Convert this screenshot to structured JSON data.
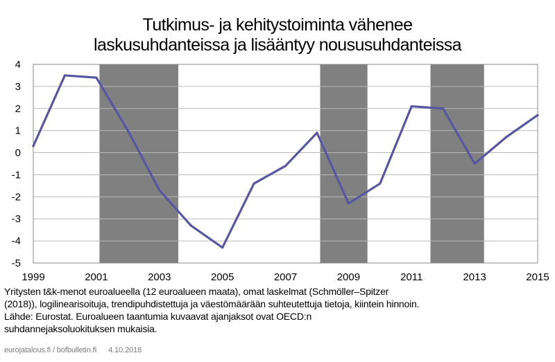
{
  "title": {
    "line1": "Tutkimus- ja kehitystoiminta vähenee",
    "line2": "laskusuhdanteissa ja lisääntyy noususuhdanteissa"
  },
  "chart_data": {
    "type": "line",
    "x": [
      1999,
      2000,
      2001,
      2002,
      2003,
      2004,
      2005,
      2006,
      2007,
      2008,
      2009,
      2010,
      2011,
      2012,
      2013,
      2014,
      2015
    ],
    "series": [
      {
        "values": [
          0.3,
          3.5,
          3.4,
          1.0,
          -1.7,
          -3.3,
          -4.3,
          -1.4,
          -0.6,
          0.9,
          -2.3,
          -1.4,
          2.1,
          2.0,
          -0.5,
          0.7,
          1.7
        ]
      }
    ],
    "recessions": [
      [
        2001.1,
        2003.6
      ],
      [
        2008.1,
        2009.6
      ],
      [
        2011.6,
        2013.3
      ]
    ],
    "xticks": [
      "1999",
      "2001",
      "2003",
      "2005",
      "2007",
      "2009",
      "2011",
      "2013",
      "2015"
    ],
    "yticks": [
      "4",
      "3",
      "2",
      "1",
      "0",
      "-1",
      "-2",
      "-3",
      "-4",
      "-5"
    ],
    "xlim": [
      1999,
      2015
    ],
    "ylim": [
      -5,
      4
    ],
    "grid": "horizontal",
    "colors": {
      "line": "#5656a2",
      "recession": "#808080",
      "grid": "#b9b9b9",
      "axis": "#888888"
    }
  },
  "caption": {
    "line1": "Yritysten t&k-menot euroalueella (12 euroalueen maata), omat laskelmat (Schmöller–Spitzer",
    "line2": "(2018)), logilinearisoituja, trendipuhdistettuja ja väestömäärään suhteutettuja tietoja, kiintein hinnoin.",
    "line3": "Lähde: Eurostat. Euroalueen taantumia kuvaavat ajanjaksot ovat OECD:n",
    "line4": "suhdannejaksoluokituksen mukaisia."
  },
  "footer": {
    "source": "eurojatalous.fi / bofbulletin.fi",
    "date": "4.10.2018"
  }
}
